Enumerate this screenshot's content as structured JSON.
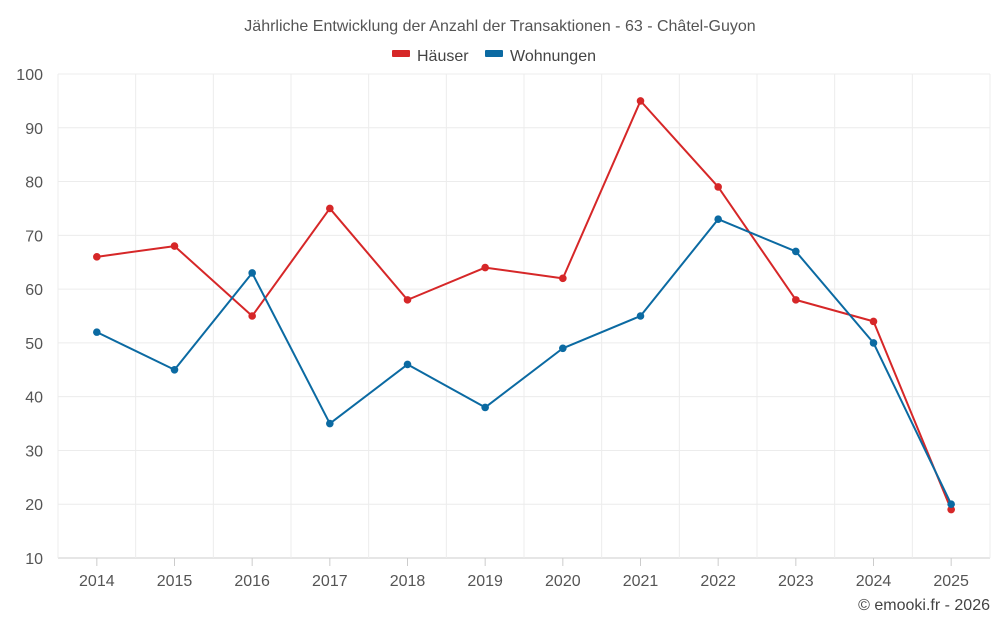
{
  "chart_data": {
    "type": "line",
    "title": "Jährliche Entwicklung der Anzahl der Transaktionen - 63 - Châtel-Guyon",
    "categories": [
      "2014",
      "2015",
      "2016",
      "2017",
      "2018",
      "2019",
      "2020",
      "2021",
      "2022",
      "2023",
      "2024",
      "2025"
    ],
    "series": [
      {
        "name": "Häuser",
        "color": "#d62728",
        "values": [
          66,
          68,
          55,
          75,
          58,
          64,
          62,
          95,
          79,
          58,
          54,
          19
        ]
      },
      {
        "name": "Wohnungen",
        "color": "#0b6aa2",
        "values": [
          52,
          45,
          63,
          35,
          46,
          38,
          49,
          55,
          73,
          67,
          50,
          20
        ]
      }
    ],
    "ylim": [
      10,
      100
    ],
    "yticks": [
      10,
      20,
      30,
      40,
      50,
      60,
      70,
      80,
      90,
      100
    ],
    "xlabel": "",
    "ylabel": "",
    "grid": true,
    "legend": "top-center"
  },
  "credit": "© emooki.fr - 2026"
}
